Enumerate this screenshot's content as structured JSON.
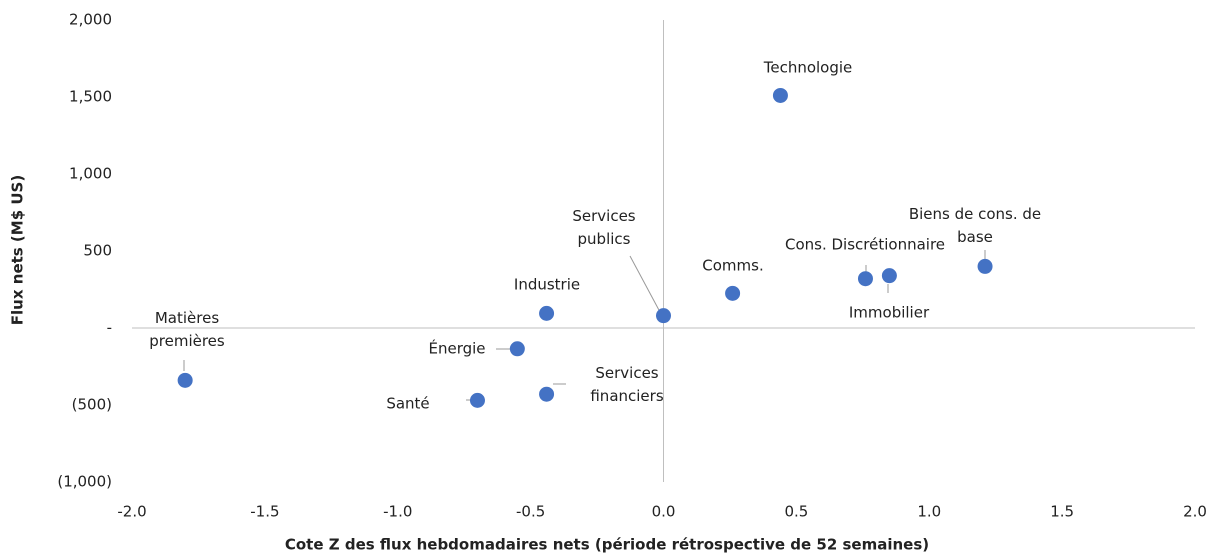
{
  "chart_data": {
    "type": "scatter",
    "xlabel": "Cote Z des flux hebdomadaires nets (période rétrospective de 52 semaines)",
    "ylabel": "Flux nets (M$ US)",
    "labels": [
      "Technologie",
      "Biens de cons. de base",
      "Immobilier",
      "Cons. Discrétionnaire",
      "Comms.",
      "Services publics",
      "Industrie",
      "Énergie",
      "Services financiers",
      "Santé",
      "Matières premières"
    ],
    "x": [
      0.44,
      1.21,
      0.85,
      0.76,
      0.26,
      0.0,
      -0.44,
      -0.55,
      -0.44,
      -0.7,
      -1.8
    ],
    "values": [
      1510,
      400,
      340,
      320,
      225,
      80,
      95,
      -135,
      -430,
      -470,
      -340
    ],
    "color": "#4472c4",
    "xlim": [
      -2,
      2
    ],
    "xticks": [
      {
        "value": -2,
        "label": "-2.0"
      },
      -1.5,
      {
        "value": -1,
        "label": "-1.0"
      },
      -0.5,
      {
        "value": 0,
        "label": "0.0"
      },
      0.5,
      {
        "value": 1,
        "label": "1.0"
      },
      1.5,
      {
        "value": 2,
        "label": "2.0"
      }
    ],
    "ylim": [
      -1000,
      2000
    ],
    "yticks": [
      {
        "value": -1000,
        "label": "(1,000)"
      },
      {
        "value": -500,
        "label": "(500)"
      },
      {
        "value": 0,
        "label": "-"
      },
      500,
      {
        "value": 1000,
        "label": "1,000"
      },
      {
        "value": 1500,
        "label": "1,500"
      },
      {
        "value": 2000,
        "label": "2,000"
      }
    ]
  }
}
